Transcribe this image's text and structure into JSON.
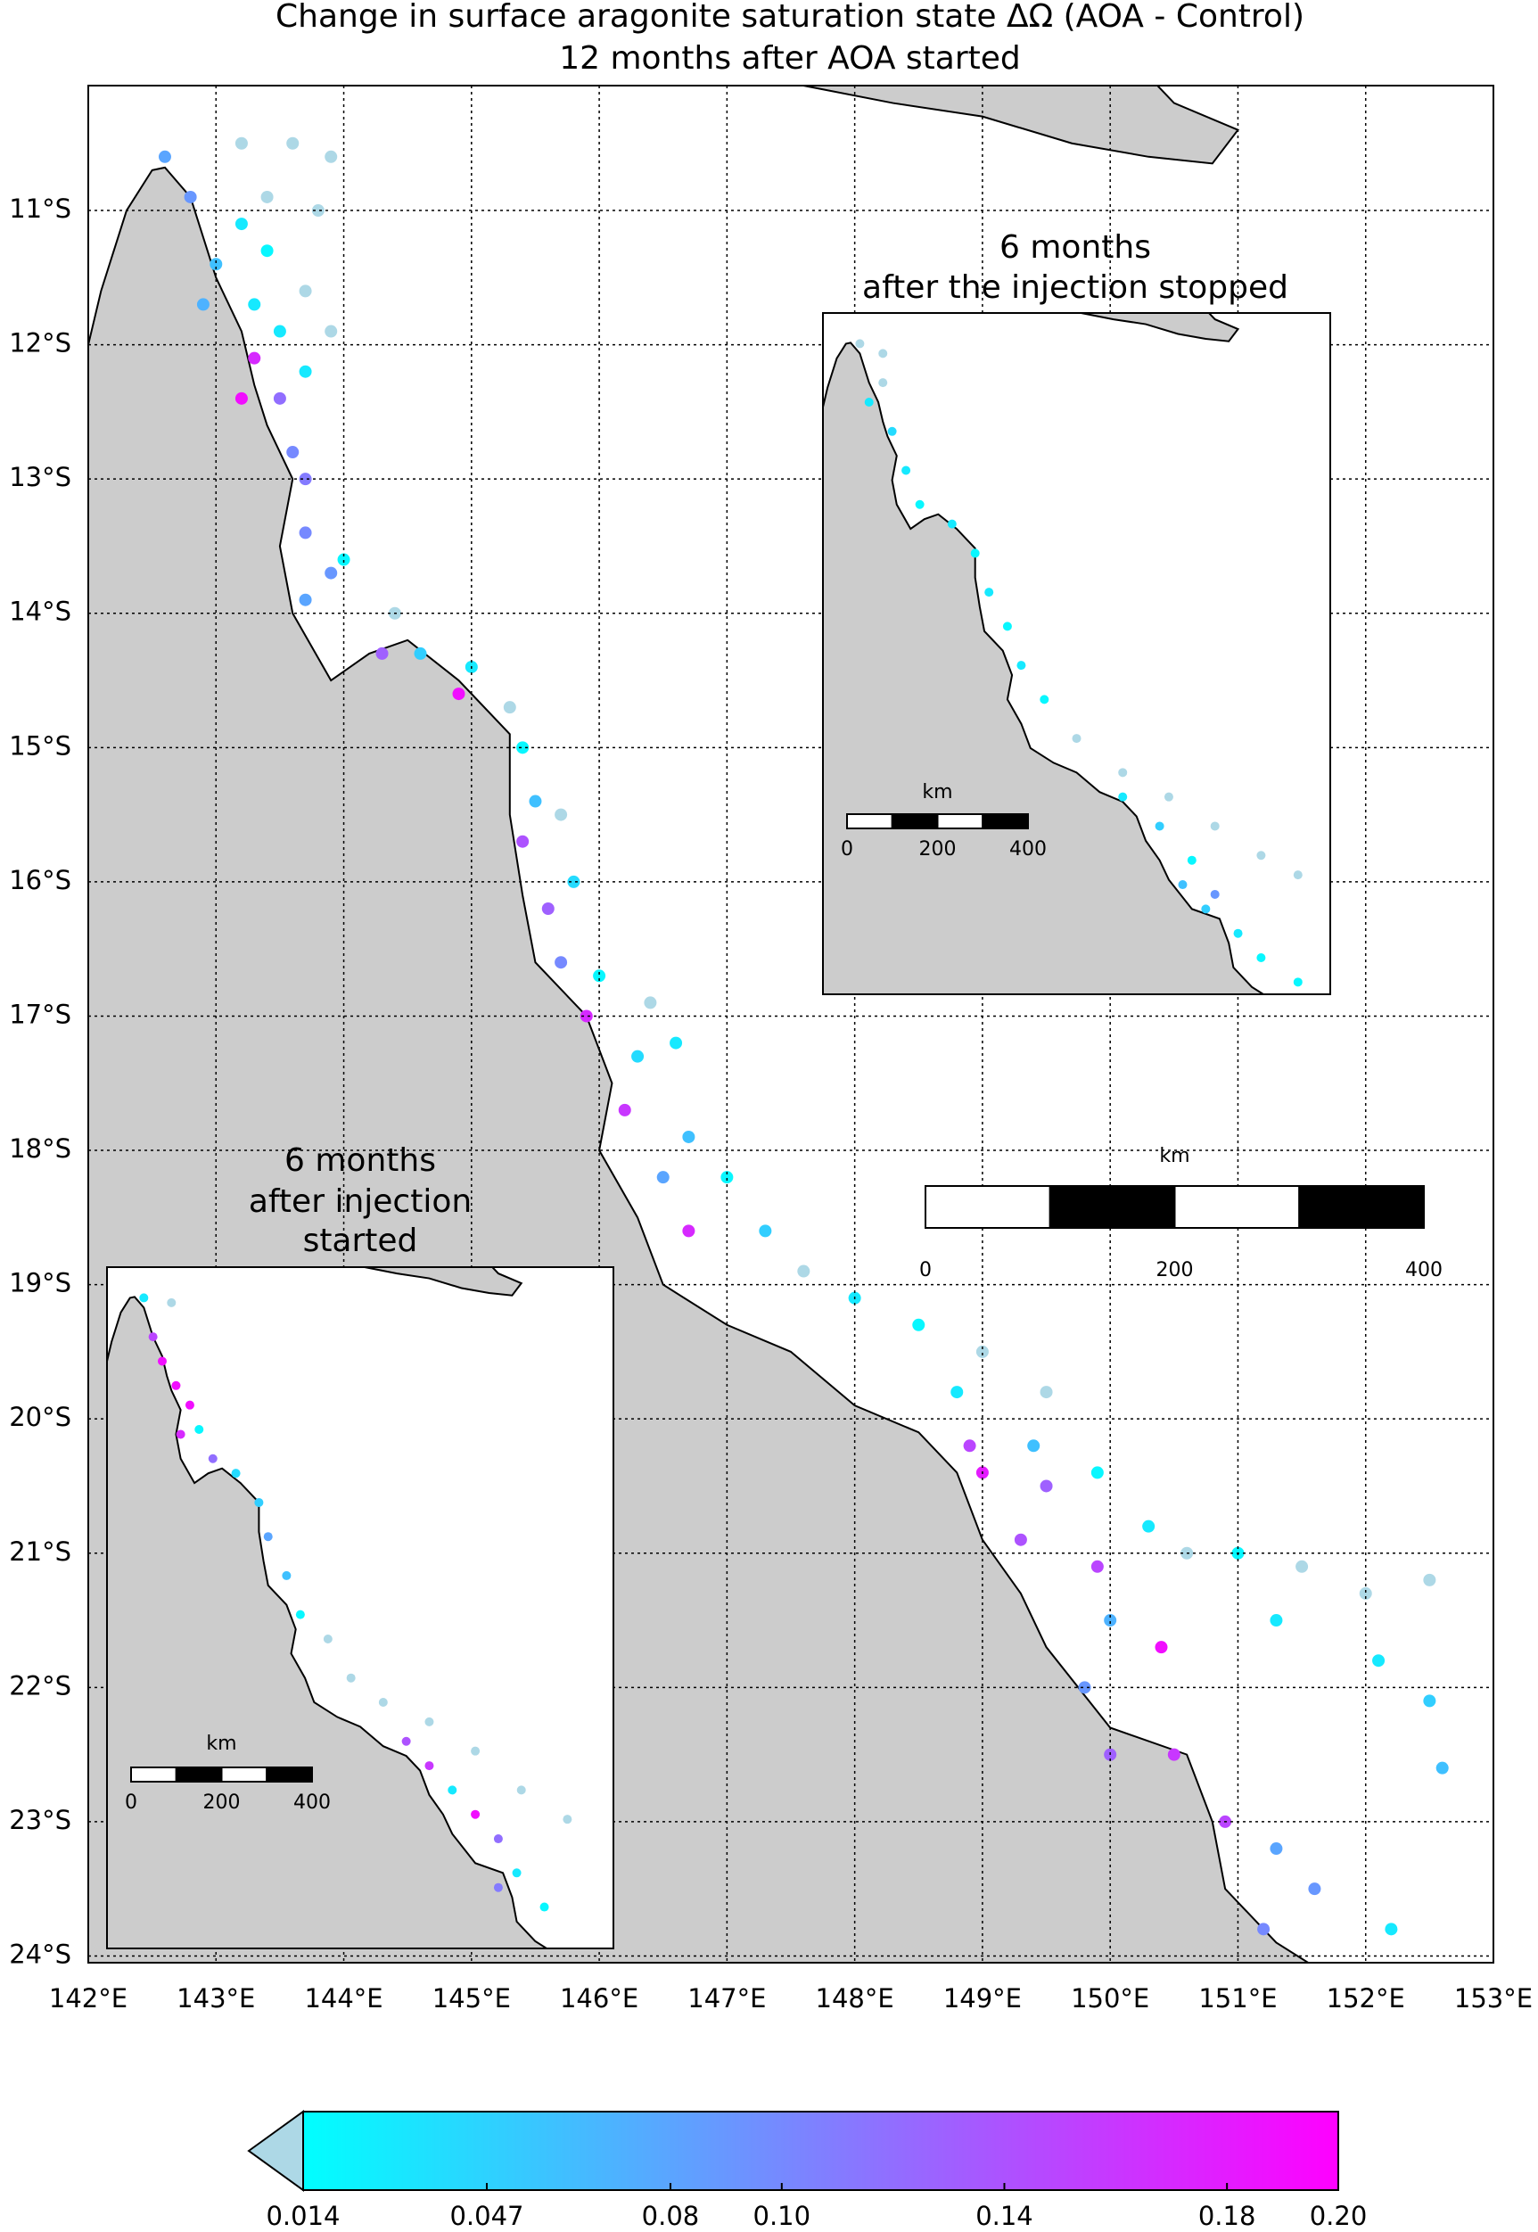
{
  "title": [
    "Change in surface aragonite saturation state ΔΩ (AOA - Control)",
    "12 months after AOA started"
  ],
  "map": {
    "xlim": [
      142,
      153
    ],
    "ylim": [
      -24.05,
      -10.07
    ],
    "grid": true,
    "land_color": "#cccccc",
    "xticks": [
      {
        "value": 142,
        "label": "142°E"
      },
      {
        "value": 143,
        "label": "143°E"
      },
      {
        "value": 144,
        "label": "144°E"
      },
      {
        "value": 145,
        "label": "145°E"
      },
      {
        "value": 146,
        "label": "146°E"
      },
      {
        "value": 147,
        "label": "147°E"
      },
      {
        "value": 148,
        "label": "148°E"
      },
      {
        "value": 149,
        "label": "149°E"
      },
      {
        "value": 150,
        "label": "150°E"
      },
      {
        "value": 151,
        "label": "151°E"
      },
      {
        "value": 152,
        "label": "152°E"
      },
      {
        "value": 153,
        "label": "153°E"
      }
    ],
    "yticks": [
      {
        "value": -11,
        "label": "11°S"
      },
      {
        "value": -12,
        "label": "12°S"
      },
      {
        "value": -13,
        "label": "13°S"
      },
      {
        "value": -14,
        "label": "14°S"
      },
      {
        "value": -15,
        "label": "15°S"
      },
      {
        "value": -16,
        "label": "16°S"
      },
      {
        "value": -17,
        "label": "17°S"
      },
      {
        "value": -18,
        "label": "18°S"
      },
      {
        "value": -19,
        "label": "19°S"
      },
      {
        "value": -20,
        "label": "20°S"
      },
      {
        "value": -21,
        "label": "21°S"
      },
      {
        "value": -22,
        "label": "22°S"
      },
      {
        "value": -23,
        "label": "23°S"
      },
      {
        "value": -24,
        "label": "24°S"
      }
    ],
    "scalebar": {
      "title": "km",
      "ticks": [
        0,
        200,
        400
      ]
    },
    "points": [
      [
        142.6,
        -10.6,
        0.08
      ],
      [
        142.8,
        -10.9,
        0.09
      ],
      [
        143.2,
        -10.5,
        0.01
      ],
      [
        143.6,
        -10.5,
        0.01
      ],
      [
        143.9,
        -10.6,
        0.01
      ],
      [
        143.4,
        -10.9,
        0.01
      ],
      [
        143.8,
        -11.0,
        0.01
      ],
      [
        143.2,
        -11.1,
        0.03
      ],
      [
        143.4,
        -11.3,
        0.02
      ],
      [
        143.0,
        -11.4,
        0.06
      ],
      [
        142.9,
        -11.7,
        0.07
      ],
      [
        143.3,
        -11.7,
        0.03
      ],
      [
        143.7,
        -11.6,
        0.01
      ],
      [
        143.9,
        -11.9,
        0.01
      ],
      [
        143.5,
        -11.9,
        0.03
      ],
      [
        143.3,
        -12.1,
        0.17
      ],
      [
        143.2,
        -12.4,
        0.19
      ],
      [
        143.5,
        -12.4,
        0.12
      ],
      [
        143.7,
        -12.2,
        0.03
      ],
      [
        143.6,
        -12.8,
        0.1
      ],
      [
        143.7,
        -13.0,
        0.11
      ],
      [
        143.7,
        -13.4,
        0.1
      ],
      [
        143.9,
        -13.7,
        0.09
      ],
      [
        143.7,
        -13.9,
        0.08
      ],
      [
        144.0,
        -13.6,
        0.02
      ],
      [
        144.4,
        -14.0,
        0.01
      ],
      [
        144.3,
        -14.3,
        0.13
      ],
      [
        144.6,
        -14.3,
        0.05
      ],
      [
        144.9,
        -14.6,
        0.19
      ],
      [
        145.0,
        -14.4,
        0.03
      ],
      [
        145.3,
        -14.7,
        0.01
      ],
      [
        145.4,
        -15.0,
        0.02
      ],
      [
        145.5,
        -15.4,
        0.06
      ],
      [
        145.4,
        -15.7,
        0.14
      ],
      [
        145.7,
        -15.5,
        0.01
      ],
      [
        145.8,
        -16.0,
        0.04
      ],
      [
        145.6,
        -16.2,
        0.13
      ],
      [
        145.7,
        -16.6,
        0.1
      ],
      [
        146.0,
        -16.7,
        0.02
      ],
      [
        145.9,
        -17.0,
        0.17
      ],
      [
        146.4,
        -16.9,
        0.01
      ],
      [
        146.3,
        -17.3,
        0.04
      ],
      [
        146.6,
        -17.2,
        0.03
      ],
      [
        146.2,
        -17.7,
        0.16
      ],
      [
        146.7,
        -17.9,
        0.06
      ],
      [
        146.5,
        -18.2,
        0.08
      ],
      [
        147.0,
        -18.2,
        0.02
      ],
      [
        146.7,
        -18.6,
        0.17
      ],
      [
        147.3,
        -18.6,
        0.05
      ],
      [
        147.6,
        -18.9,
        0.01
      ],
      [
        148.0,
        -19.1,
        0.03
      ],
      [
        148.5,
        -19.3,
        0.02
      ],
      [
        149.0,
        -19.5,
        0.01
      ],
      [
        148.8,
        -19.8,
        0.03
      ],
      [
        149.5,
        -19.8,
        0.01
      ],
      [
        149.4,
        -20.2,
        0.06
      ],
      [
        148.9,
        -20.2,
        0.15
      ],
      [
        149.0,
        -20.4,
        0.18
      ],
      [
        149.5,
        -20.5,
        0.13
      ],
      [
        149.9,
        -20.4,
        0.02
      ],
      [
        150.3,
        -20.8,
        0.03
      ],
      [
        150.6,
        -21.0,
        0.01
      ],
      [
        151.0,
        -21.0,
        0.02
      ],
      [
        151.5,
        -21.1,
        0.01
      ],
      [
        152.0,
        -21.3,
        0.01
      ],
      [
        152.5,
        -21.2,
        0.01
      ],
      [
        151.3,
        -21.5,
        0.03
      ],
      [
        150.0,
        -21.5,
        0.07
      ],
      [
        150.4,
        -21.7,
        0.19
      ],
      [
        149.8,
        -22.0,
        0.09
      ],
      [
        150.0,
        -22.5,
        0.13
      ],
      [
        150.5,
        -22.5,
        0.16
      ],
      [
        152.1,
        -21.8,
        0.03
      ],
      [
        152.5,
        -22.1,
        0.05
      ],
      [
        152.6,
        -22.6,
        0.06
      ],
      [
        150.9,
        -23.0,
        0.15
      ],
      [
        151.3,
        -23.2,
        0.08
      ],
      [
        151.6,
        -23.5,
        0.09
      ],
      [
        151.2,
        -23.8,
        0.1
      ],
      [
        152.2,
        -23.8,
        0.03
      ],
      [
        149.3,
        -20.9,
        0.14
      ],
      [
        149.9,
        -21.1,
        0.15
      ]
    ]
  },
  "insets": [
    {
      "title": [
        "6 months",
        "after the injection stopped"
      ],
      "scalebar": {
        "title": "km",
        "ticks": [
          0,
          200,
          400
        ]
      },
      "points": [
        [
          142.8,
          -10.7,
          0.01
        ],
        [
          143.3,
          -10.9,
          0.01
        ],
        [
          143.3,
          -11.5,
          0.01
        ],
        [
          143.0,
          -11.9,
          0.03
        ],
        [
          143.5,
          -12.5,
          0.04
        ],
        [
          143.8,
          -13.3,
          0.03
        ],
        [
          144.1,
          -14.0,
          0.02
        ],
        [
          144.8,
          -14.4,
          0.03
        ],
        [
          145.3,
          -15.0,
          0.02
        ],
        [
          145.6,
          -15.8,
          0.03
        ],
        [
          146.0,
          -16.5,
          0.02
        ],
        [
          146.3,
          -17.3,
          0.03
        ],
        [
          146.8,
          -18.0,
          0.02
        ],
        [
          147.5,
          -18.8,
          0.01
        ],
        [
          148.5,
          -19.5,
          0.01
        ],
        [
          149.5,
          -20.0,
          0.01
        ],
        [
          150.5,
          -20.6,
          0.01
        ],
        [
          151.5,
          -21.2,
          0.01
        ],
        [
          152.3,
          -21.6,
          0.01
        ],
        [
          148.5,
          -20.0,
          0.03
        ],
        [
          149.3,
          -20.6,
          0.05
        ],
        [
          150.0,
          -21.3,
          0.02
        ],
        [
          149.8,
          -21.8,
          0.06
        ],
        [
          150.3,
          -22.3,
          0.05
        ],
        [
          151.0,
          -22.8,
          0.03
        ],
        [
          151.5,
          -23.3,
          0.02
        ],
        [
          152.3,
          -23.8,
          0.02
        ],
        [
          150.5,
          -22.0,
          0.09
        ]
      ]
    },
    {
      "title": [
        "6 months",
        "after injection",
        "started"
      ],
      "scalebar": {
        "title": "km",
        "ticks": [
          0,
          200,
          400
        ]
      },
      "points": [
        [
          142.8,
          -10.7,
          0.03
        ],
        [
          143.4,
          -10.8,
          0.01
        ],
        [
          143.0,
          -11.5,
          0.15
        ],
        [
          143.2,
          -12.0,
          0.19
        ],
        [
          143.5,
          -12.5,
          0.19
        ],
        [
          143.8,
          -12.9,
          0.19
        ],
        [
          143.6,
          -13.5,
          0.17
        ],
        [
          144.0,
          -13.4,
          0.02
        ],
        [
          144.3,
          -14.0,
          0.12
        ],
        [
          144.8,
          -14.3,
          0.04
        ],
        [
          145.3,
          -14.9,
          0.05
        ],
        [
          145.5,
          -15.6,
          0.08
        ],
        [
          145.9,
          -16.4,
          0.06
        ],
        [
          146.2,
          -17.2,
          0.02
        ],
        [
          146.8,
          -17.7,
          0.01
        ],
        [
          147.3,
          -18.5,
          0.01
        ],
        [
          148.0,
          -19.0,
          0.01
        ],
        [
          149.0,
          -19.4,
          0.01
        ],
        [
          150.0,
          -20.0,
          0.01
        ],
        [
          151.0,
          -20.8,
          0.01
        ],
        [
          152.0,
          -21.4,
          0.01
        ],
        [
          148.5,
          -19.8,
          0.14
        ],
        [
          149.0,
          -20.3,
          0.16
        ],
        [
          149.5,
          -20.8,
          0.03
        ],
        [
          150.0,
          -21.3,
          0.19
        ],
        [
          150.5,
          -21.8,
          0.12
        ],
        [
          150.9,
          -22.5,
          0.03
        ],
        [
          151.5,
          -23.2,
          0.02
        ],
        [
          150.5,
          -22.8,
          0.11
        ]
      ]
    }
  ],
  "colorbar": {
    "lim": [
      0.014,
      0.2
    ],
    "colors": [
      "#00ffff",
      "#ff00ff"
    ],
    "under_color": "#add8e6",
    "ticks": [
      0.014,
      0.047,
      {
        "value": 0.08,
        "label": "0.08"
      },
      {
        "value": 0.1,
        "label": "0.10"
      },
      0.14,
      0.18,
      {
        "value": 0.2,
        "label": "0.20"
      }
    ]
  }
}
